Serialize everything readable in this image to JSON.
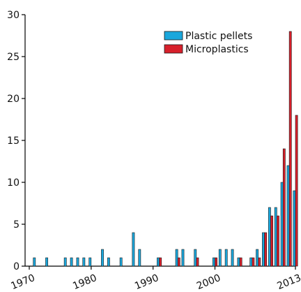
{
  "chart_data": {
    "type": "bar",
    "x": [
      1971,
      1973,
      1976,
      1977,
      1978,
      1979,
      1980,
      1982,
      1983,
      1985,
      1987,
      1988,
      1991,
      1994,
      1995,
      1997,
      2000,
      2001,
      2002,
      2003,
      2004,
      2006,
      2007,
      2008,
      2009,
      2010,
      2011,
      2012,
      2013
    ],
    "series": [
      {
        "name": "Plastic pellets",
        "color": "#1aa7dc",
        "values": [
          1,
          1,
          1,
          1,
          1,
          1,
          1,
          2,
          1,
          1,
          4,
          2,
          1,
          2,
          2,
          2,
          1,
          2,
          2,
          2,
          1,
          1,
          2,
          4,
          7,
          7,
          10,
          12,
          9
        ]
      },
      {
        "name": "Microplastics",
        "color": "#d7202b",
        "values": [
          0,
          0,
          0,
          0,
          0,
          0,
          0,
          0,
          0,
          0,
          0,
          0,
          1,
          1,
          0,
          1,
          1,
          0,
          0,
          0,
          1,
          1,
          1,
          4,
          6,
          6,
          14,
          28,
          18
        ]
      }
    ],
    "xticks": [
      "1970",
      "1980",
      "1990",
      "2000",
      "2013"
    ],
    "yticks": [
      "0",
      "5",
      "10",
      "15",
      "20",
      "25",
      "30"
    ],
    "xlim": [
      1970,
      2013
    ],
    "ylim": [
      0,
      30
    ],
    "legend_position": "top-right",
    "grid": false
  }
}
